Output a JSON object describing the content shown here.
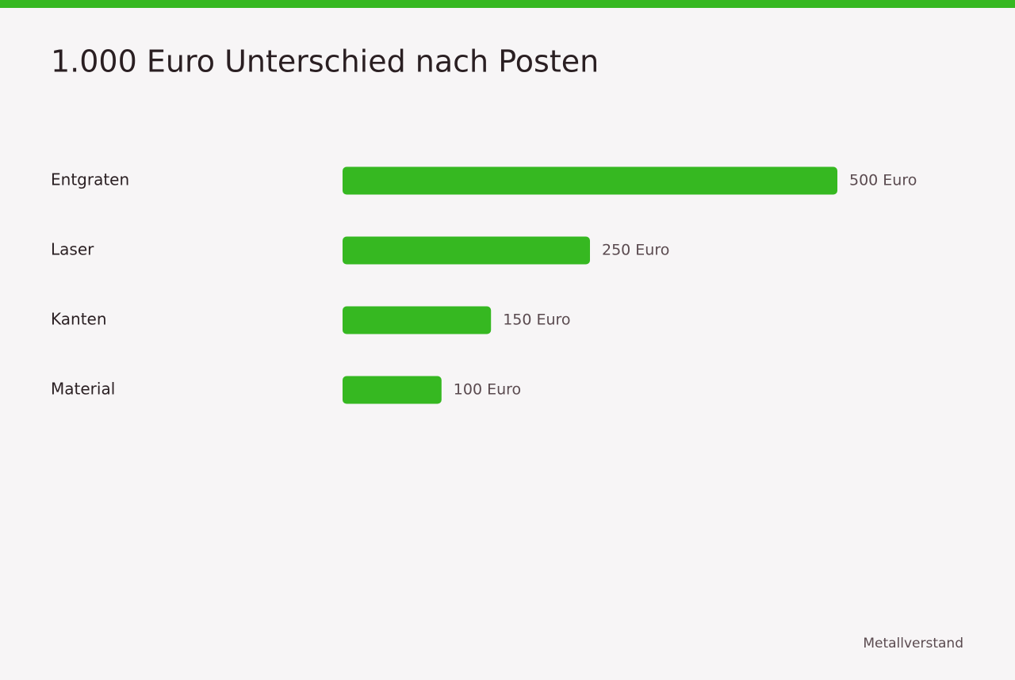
{
  "chart_data": {
    "type": "hbar",
    "title": "1.000 Euro Unterschied nach Posten",
    "categories": [
      "Entgraten",
      "Laser",
      "Kanten",
      "Material"
    ],
    "values": [
      500,
      250,
      150,
      100
    ],
    "value_labels": [
      "500 Euro",
      "250 Euro",
      "150 Euro",
      "100 Euro"
    ],
    "color": "#36b821",
    "source": "Metallverstand"
  }
}
